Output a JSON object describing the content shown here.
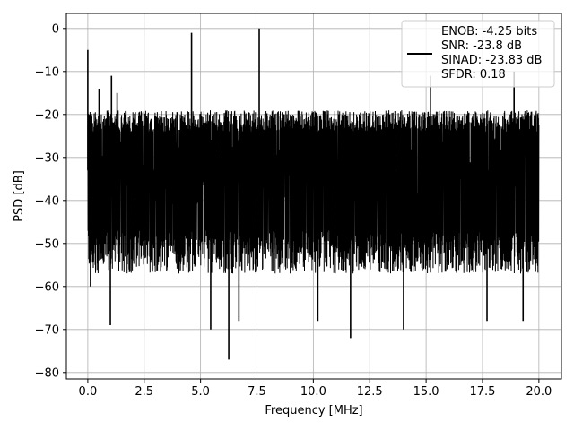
{
  "chart_data": {
    "type": "line",
    "title": "",
    "xlabel": "Frequency [MHz]",
    "ylabel": "PSD [dB]",
    "xlim": [
      -0.95,
      21.0
    ],
    "ylim": [
      -81.5,
      3.5
    ],
    "xticks": [
      0.0,
      2.5,
      5.0,
      7.5,
      10.0,
      12.5,
      15.0,
      17.5,
      20.0
    ],
    "xtick_labels": [
      "0.0",
      "2.5",
      "5.0",
      "7.5",
      "10.0",
      "12.5",
      "15.0",
      "17.5",
      "20.0"
    ],
    "yticks": [
      0,
      -10,
      -20,
      -30,
      -40,
      -50,
      -60,
      -70,
      -80
    ],
    "ytick_labels": [
      "0",
      "−10",
      "−20",
      "−30",
      "−40",
      "−50",
      "−60",
      "−70",
      "−80"
    ],
    "grid": true,
    "legend_position": "top-right",
    "series_color": "#000000",
    "legend": {
      "lines": [
        "ENOB: -4.25 bits",
        "SNR: -23.8 dB",
        "SINAD: -23.83 dB",
        "SFDR: 0.18"
      ]
    },
    "series": [
      {
        "x_start": 0.0,
        "x_end": 20.0,
        "band_upper_typical": -21,
        "band_lower_typical": -50,
        "band_center": -33,
        "peaks": [
          {
            "x": 0.0,
            "y": -5
          },
          {
            "x": 0.08,
            "y": -21
          },
          {
            "x": 0.5,
            "y": -14
          },
          {
            "x": 1.05,
            "y": -11
          },
          {
            "x": 1.3,
            "y": -15
          },
          {
            "x": 4.6,
            "y": -1
          },
          {
            "x": 7.6,
            "y": 0
          },
          {
            "x": 15.2,
            "y": -11
          },
          {
            "x": 18.9,
            "y": -10
          }
        ],
        "dips": [
          {
            "x": 0.12,
            "y": -60
          },
          {
            "x": 1.0,
            "y": -69
          },
          {
            "x": 5.45,
            "y": -70
          },
          {
            "x": 6.25,
            "y": -77
          },
          {
            "x": 6.7,
            "y": -68
          },
          {
            "x": 10.2,
            "y": -68
          },
          {
            "x": 11.65,
            "y": -72
          },
          {
            "x": 14.0,
            "y": -70
          },
          {
            "x": 17.7,
            "y": -68
          },
          {
            "x": 19.3,
            "y": -68
          }
        ]
      }
    ]
  }
}
